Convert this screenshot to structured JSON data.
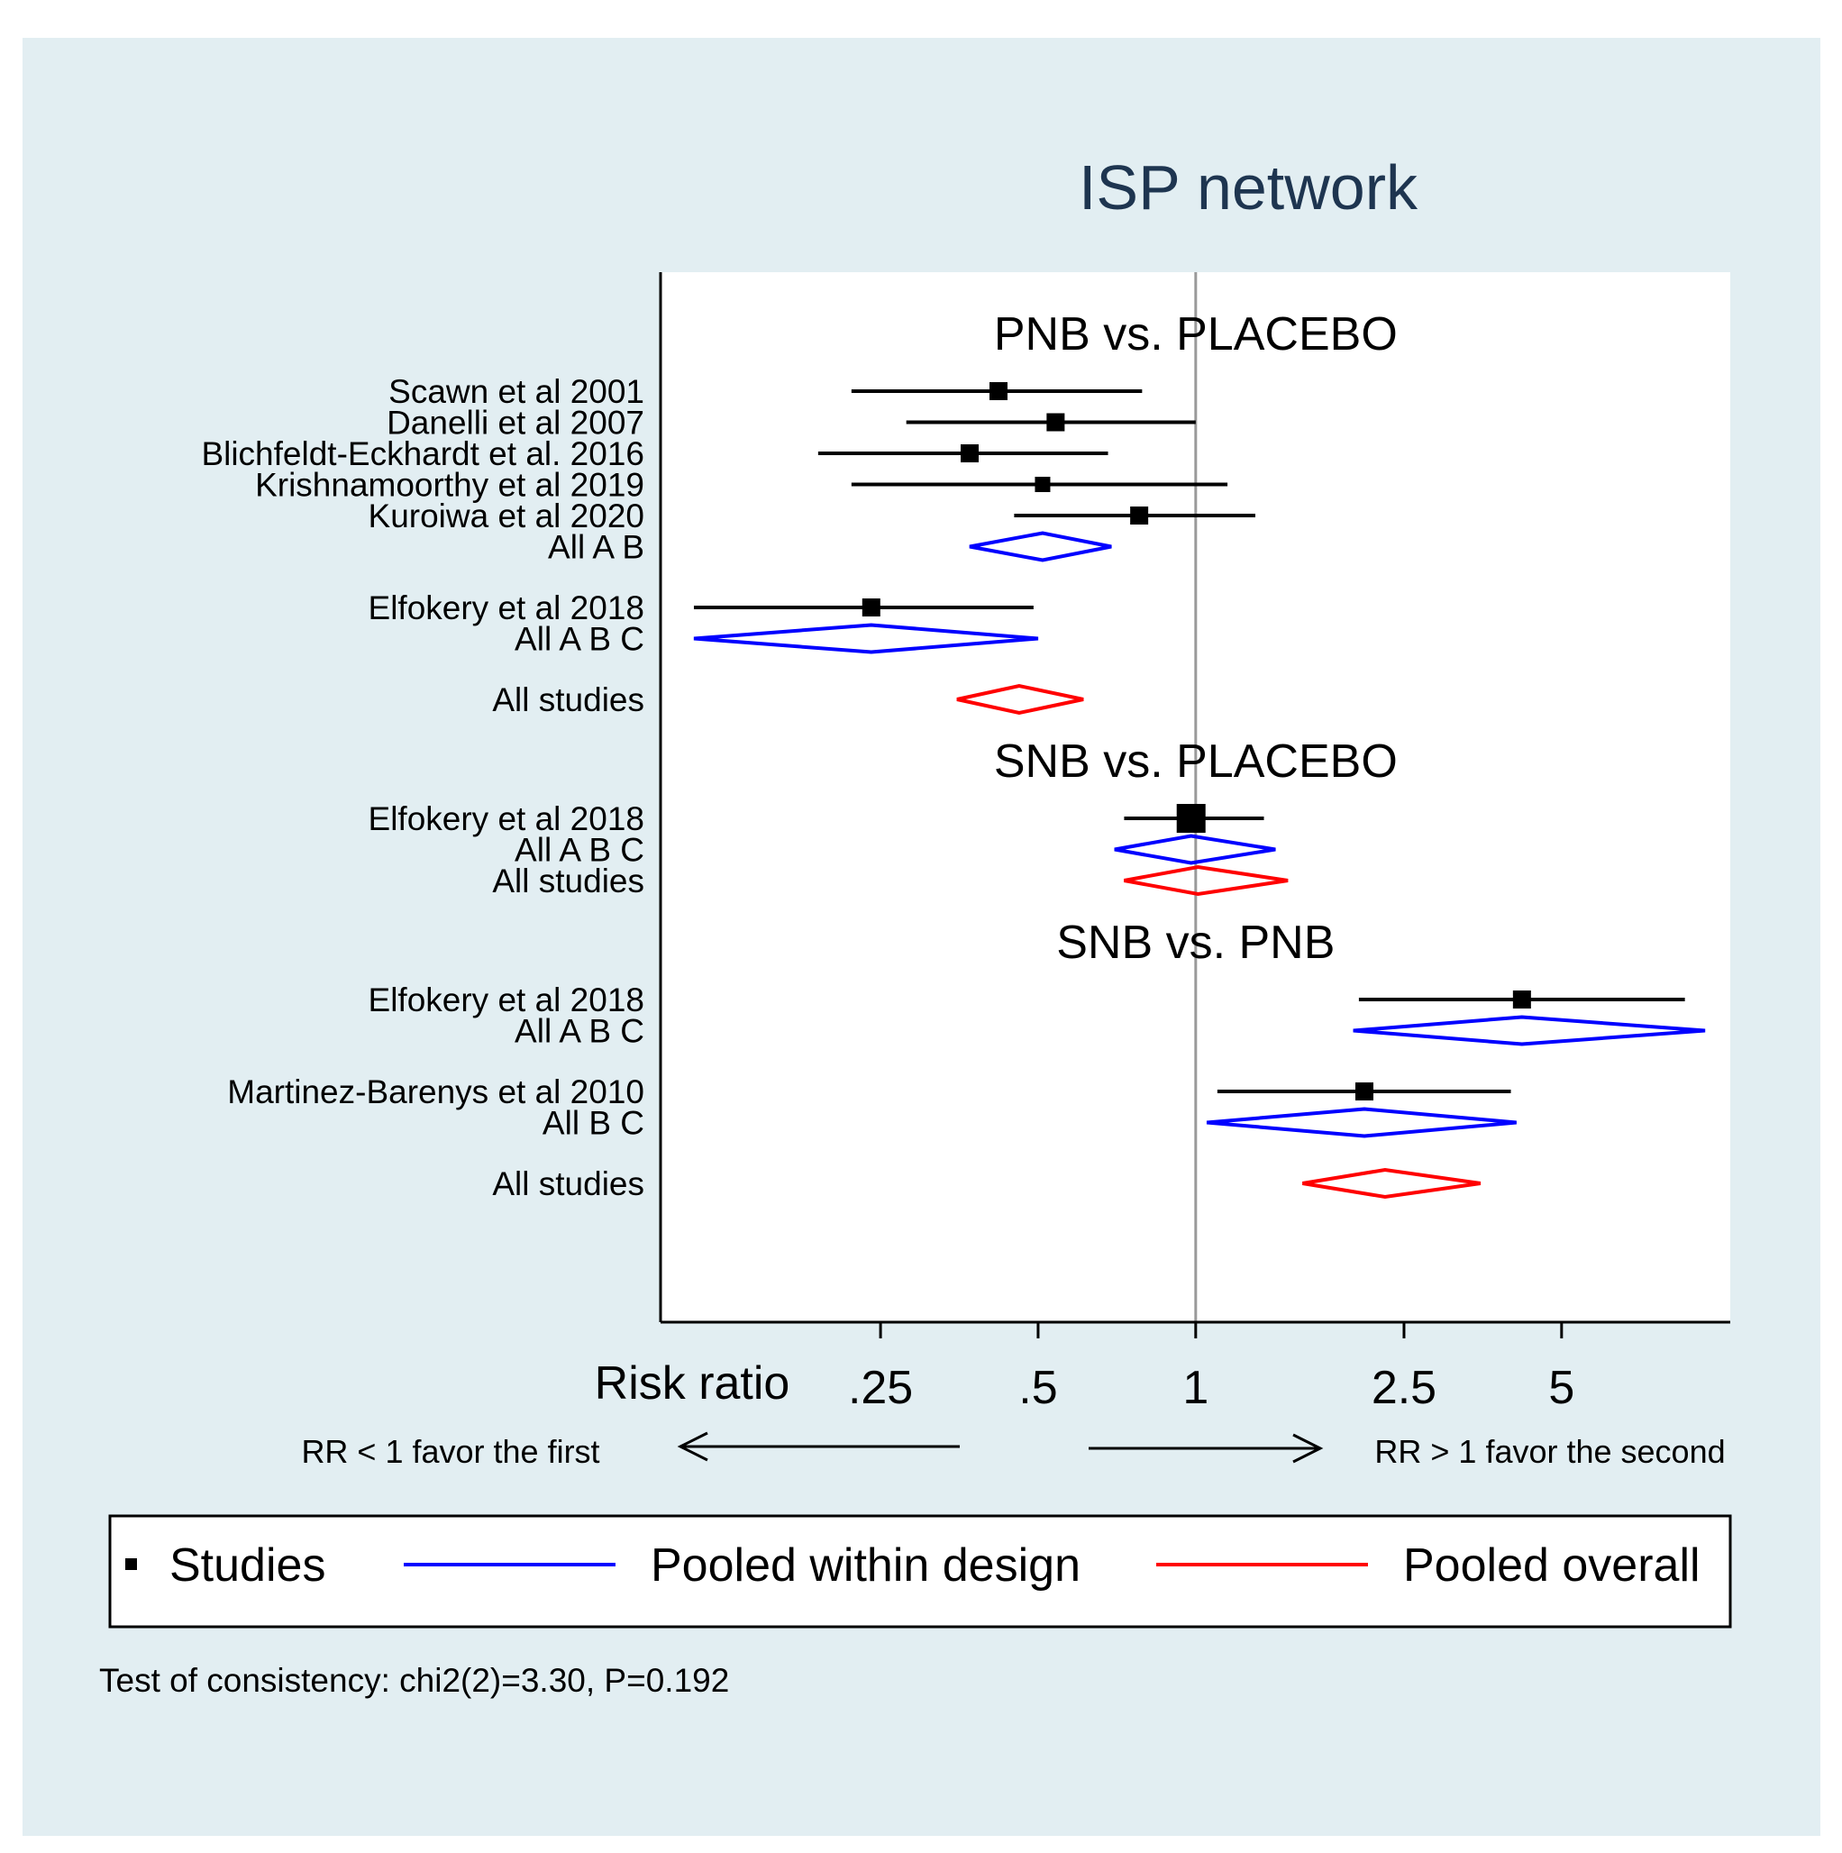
{
  "chart_data": {
    "type": "forest",
    "title": "ISP network",
    "xlabel": "Risk ratio",
    "x_scale": "log",
    "xlim": [
      0.095,
      10.5
    ],
    "reference_line": 1,
    "ticks": [
      {
        "value": 0.25,
        "label": ".25"
      },
      {
        "value": 0.5,
        "label": ".5"
      },
      {
        "value": 1,
        "label": "1"
      },
      {
        "value": 2.5,
        "label": "2.5"
      },
      {
        "value": 5,
        "label": "5"
      }
    ],
    "direction_left": "RR < 1 favor the first",
    "direction_right": "RR > 1 favor the second",
    "panels": [
      {
        "key": "pnb",
        "label": "PNB vs. PLACEBO"
      },
      {
        "key": "snb_placebo",
        "label": "SNB vs. PLACEBO"
      },
      {
        "key": "snb_pnb",
        "label": "SNB vs. PNB"
      }
    ],
    "rows": [
      {
        "panel": "pnb",
        "label": "Scawn et al 2001",
        "kind": "study",
        "est": 0.42,
        "lo": 0.22,
        "hi": 0.79,
        "marker": "md"
      },
      {
        "panel": "pnb",
        "label": "Danelli et al 2007",
        "kind": "study",
        "est": 0.54,
        "lo": 0.28,
        "hi": 1.0,
        "marker": "md"
      },
      {
        "panel": "pnb",
        "label": "Blichfeldt-Eckhardt et al. 2016",
        "kind": "study",
        "est": 0.37,
        "lo": 0.19,
        "hi": 0.68,
        "marker": "md"
      },
      {
        "panel": "pnb",
        "label": "Krishnamoorthy et al 2019",
        "kind": "study",
        "est": 0.51,
        "lo": 0.22,
        "hi": 1.15,
        "marker": "sm"
      },
      {
        "panel": "pnb",
        "label": "Kuroiwa et al 2020",
        "kind": "study",
        "est": 0.78,
        "lo": 0.45,
        "hi": 1.3,
        "marker": "md"
      },
      {
        "panel": "pnb",
        "label": "All A B",
        "kind": "pooled_design",
        "est": 0.51,
        "lo": 0.37,
        "hi": 0.69
      },
      {
        "panel": "pnb",
        "label": "Elfokery et al 2018",
        "kind": "study",
        "est": 0.24,
        "lo": 0.11,
        "hi": 0.49,
        "marker": "md",
        "gap_before": true
      },
      {
        "panel": "pnb",
        "label": "All A B C",
        "kind": "pooled_design",
        "est": 0.24,
        "lo": 0.11,
        "hi": 0.5
      },
      {
        "panel": "pnb",
        "label": "All studies",
        "kind": "pooled_overall",
        "est": 0.46,
        "lo": 0.35,
        "hi": 0.61,
        "gap_before": true
      },
      {
        "panel": "snb_placebo",
        "label": "Elfokery et al 2018",
        "kind": "study",
        "est": 0.98,
        "lo": 0.73,
        "hi": 1.35,
        "marker": "lg"
      },
      {
        "panel": "snb_placebo",
        "label": "All A B C",
        "kind": "pooled_design",
        "est": 0.98,
        "lo": 0.7,
        "hi": 1.42
      },
      {
        "panel": "snb_placebo",
        "label": "All studies",
        "kind": "pooled_overall",
        "est": 1.01,
        "lo": 0.73,
        "hi": 1.5
      },
      {
        "panel": "snb_pnb",
        "label": "Elfokery et al 2018",
        "kind": "study",
        "est": 4.2,
        "lo": 2.05,
        "hi": 8.6,
        "marker": "md"
      },
      {
        "panel": "snb_pnb",
        "label": "All A B C",
        "kind": "pooled_design",
        "est": 4.2,
        "lo": 2.0,
        "hi": 9.4
      },
      {
        "panel": "snb_pnb",
        "label": "Martinez-Barenys et al 2010",
        "kind": "study",
        "est": 2.1,
        "lo": 1.1,
        "hi": 4.0,
        "marker": "md",
        "gap_before": true
      },
      {
        "panel": "snb_pnb",
        "label": "All B C",
        "kind": "pooled_design",
        "est": 2.1,
        "lo": 1.05,
        "hi": 4.1
      },
      {
        "panel": "snb_pnb",
        "label": "All studies",
        "kind": "pooled_overall",
        "est": 2.3,
        "lo": 1.6,
        "hi": 3.5,
        "gap_before": true
      }
    ],
    "legend": [
      {
        "label": "Studies",
        "kind": "study",
        "color": "#000000"
      },
      {
        "label": "Pooled within design",
        "kind": "pooled_design",
        "color": "#0000ff"
      },
      {
        "label": "Pooled overall",
        "kind": "pooled_overall",
        "color": "#ff0000"
      }
    ],
    "footnote": "Test of consistency: chi2(2)=3.30, P=0.192"
  }
}
